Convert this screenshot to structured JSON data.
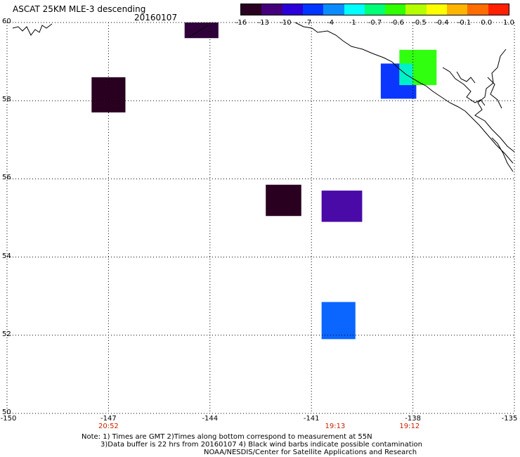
{
  "header": {
    "title_line1": "ASCAT 25KM MLE-3 descending",
    "title_line2": "20160107"
  },
  "colorbar": {
    "colors": [
      "#2a0020",
      "#44007a",
      "#2b00d8",
      "#0036ff",
      "#0a8cff",
      "#00ffff",
      "#00ff77",
      "#30ff00",
      "#b4ff00",
      "#ffff00",
      "#ffb400",
      "#ff6c00",
      "#ff2000"
    ],
    "labels": [
      "-16",
      "-13",
      "-10",
      "-7",
      "-4",
      "-1",
      "-0.7",
      "-0.6",
      "-0.5",
      "-0.4",
      "-0.1",
      "0.0",
      "1.0"
    ]
  },
  "map": {
    "lon_range": [
      -150,
      -135
    ],
    "lat_range": [
      50,
      60
    ],
    "lon_ticks": [
      "-150",
      "-147",
      "-144",
      "-141",
      "-138",
      "-135"
    ],
    "lat_ticks": [
      "60",
      "58",
      "56",
      "54",
      "52",
      "50"
    ],
    "time_labels": [
      {
        "lon": -147,
        "text": "20:52"
      },
      {
        "lon": -140.3,
        "text": "19:13"
      },
      {
        "lon": -138.1,
        "text": "19:12"
      }
    ],
    "data_cells": [
      {
        "lon": [
          -147.5,
          -146.5
        ],
        "lat": [
          57.7,
          58.6
        ],
        "color": "#2a0020"
      },
      {
        "lon": [
          -144.75,
          -143.75
        ],
        "lat": [
          59.6,
          60.0
        ],
        "color": "#30003a"
      },
      {
        "lon": [
          -142.35,
          -141.3
        ],
        "lat": [
          55.05,
          55.85
        ],
        "color": "#2a0020"
      },
      {
        "lon": [
          -140.7,
          -139.5
        ],
        "lat": [
          54.9,
          55.7
        ],
        "color": "#4a0aa8"
      },
      {
        "lon": [
          -140.7,
          -139.7
        ],
        "lat": [
          51.9,
          52.85
        ],
        "color": "#0a66ff"
      },
      {
        "lon": [
          -138.95,
          -137.9
        ],
        "lat": [
          58.05,
          58.95
        ],
        "color": "#0a36ff"
      },
      {
        "lon": [
          -138.4,
          -137.3
        ],
        "lat": [
          58.4,
          59.3
        ],
        "color": "#30ff10"
      },
      {
        "lon": [
          -138.4,
          -138.0
        ],
        "lat": [
          58.4,
          58.95
        ],
        "color": "#00f0c8"
      }
    ]
  },
  "footer": {
    "note_line1": "Note: 1) Times are GMT 2)Times along bottom correspond to measurement at 55N",
    "note_line2": "3)Data buffer is 22 hrs from 20160107 4) Black wind barbs indicate possible contamination",
    "note_line3": "NOAA/NESDIS/Center for Satellite Applications and Research"
  }
}
